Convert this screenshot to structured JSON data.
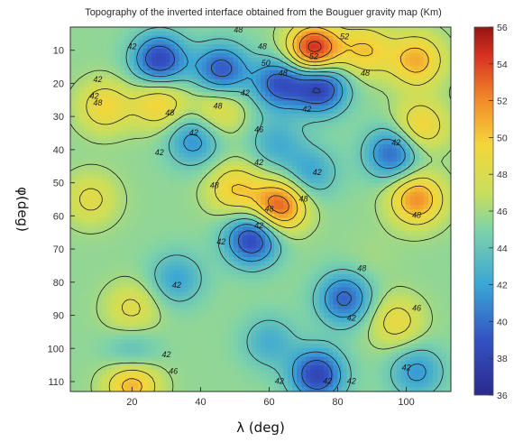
{
  "chart_data": {
    "type": "heatmap",
    "title": "Topography of the inverted interface obtained from the Bouguer gravity map (Km)",
    "xlabel": "λ (deg)",
    "ylabel": "φ(deg)",
    "xlim": [
      2,
      113
    ],
    "ylim": [
      113,
      3
    ],
    "xticks": [
      "20",
      "40",
      "60",
      "80",
      "100"
    ],
    "yticks": [
      "10",
      "20",
      "30",
      "40",
      "50",
      "60",
      "70",
      "80",
      "90",
      "100",
      "110"
    ],
    "colorbar": {
      "min": 36,
      "max": 56,
      "ticks": [
        "56",
        "54",
        "52",
        "50",
        "48",
        "46",
        "44",
        "42",
        "40",
        "38",
        "36"
      ],
      "colormap": "jet"
    },
    "baseline": 45.5,
    "features": [
      {
        "lon": 28,
        "lat": 13,
        "value": 38
      },
      {
        "lon": 46,
        "lat": 16,
        "value": 39
      },
      {
        "lon": 63,
        "lat": 20,
        "value": 39
      },
      {
        "lon": 75,
        "lat": 21,
        "value": 37.5
      },
      {
        "lon": 73,
        "lat": 10,
        "value": 55.5
      },
      {
        "lon": 88,
        "lat": 10,
        "value": 50
      },
      {
        "lon": 103,
        "lat": 13,
        "value": 51
      },
      {
        "lon": 104,
        "lat": 33,
        "value": 50
      },
      {
        "lon": 28,
        "lat": 26,
        "value": 50
      },
      {
        "lon": 12,
        "lat": 27,
        "value": 49.5
      },
      {
        "lon": 45,
        "lat": 28,
        "value": 49
      },
      {
        "lon": 38,
        "lat": 37,
        "value": 41
      },
      {
        "lon": 62,
        "lat": 38,
        "value": 42.5
      },
      {
        "lon": 96,
        "lat": 41,
        "value": 39.5
      },
      {
        "lon": 72,
        "lat": 47,
        "value": 42
      },
      {
        "lon": 63,
        "lat": 57,
        "value": 53.5
      },
      {
        "lon": 50,
        "lat": 52,
        "value": 50
      },
      {
        "lon": 103,
        "lat": 55,
        "value": 52
      },
      {
        "lon": 8,
        "lat": 55,
        "value": 48.5
      },
      {
        "lon": 55,
        "lat": 67,
        "value": 38
      },
      {
        "lon": 33,
        "lat": 79,
        "value": 42
      },
      {
        "lon": 82,
        "lat": 85,
        "value": 39.5
      },
      {
        "lon": 90,
        "lat": 73,
        "value": 46
      },
      {
        "lon": 20,
        "lat": 88,
        "value": 48.5
      },
      {
        "lon": 60,
        "lat": 98,
        "value": 42.5
      },
      {
        "lon": 97,
        "lat": 92,
        "value": 49
      },
      {
        "lon": 20,
        "lat": 103,
        "value": 42
      },
      {
        "lon": 20,
        "lat": 110,
        "value": 52
      },
      {
        "lon": 74,
        "lat": 108,
        "value": 38
      },
      {
        "lon": 103,
        "lat": 107,
        "value": 41.5
      }
    ],
    "contour_labels": [
      {
        "lon": 51,
        "lat": 4,
        "text": "48"
      },
      {
        "lon": 20,
        "lat": 9,
        "text": "42"
      },
      {
        "lon": 82,
        "lat": 6,
        "text": "52"
      },
      {
        "lon": 58,
        "lat": 9,
        "text": "48"
      },
      {
        "lon": 73,
        "lat": 12,
        "text": "52"
      },
      {
        "lon": 59,
        "lat": 14,
        "text": "50"
      },
      {
        "lon": 10,
        "lat": 19,
        "text": "42"
      },
      {
        "lon": 64,
        "lat": 17,
        "text": "48"
      },
      {
        "lon": 88,
        "lat": 17,
        "text": "48"
      },
      {
        "lon": 53,
        "lat": 23,
        "text": "42"
      },
      {
        "lon": 9,
        "lat": 24,
        "text": "42"
      },
      {
        "lon": 10,
        "lat": 26,
        "text": "48"
      },
      {
        "lon": 45,
        "lat": 27,
        "text": "48"
      },
      {
        "lon": 31,
        "lat": 29,
        "text": "48"
      },
      {
        "lon": 71,
        "lat": 28,
        "text": "42"
      },
      {
        "lon": 57,
        "lat": 34,
        "text": "46"
      },
      {
        "lon": 38,
        "lat": 35,
        "text": "42"
      },
      {
        "lon": 97,
        "lat": 38,
        "text": "42"
      },
      {
        "lon": 28,
        "lat": 41,
        "text": "42"
      },
      {
        "lon": 57,
        "lat": 44,
        "text": "42"
      },
      {
        "lon": 74,
        "lat": 47,
        "text": "42"
      },
      {
        "lon": 44,
        "lat": 51,
        "text": "48"
      },
      {
        "lon": 70,
        "lat": 55,
        "text": "48"
      },
      {
        "lon": 60,
        "lat": 58,
        "text": "48"
      },
      {
        "lon": 103,
        "lat": 60,
        "text": "48"
      },
      {
        "lon": 57,
        "lat": 63,
        "text": "42"
      },
      {
        "lon": 46,
        "lat": 68,
        "text": "42"
      },
      {
        "lon": 87,
        "lat": 76,
        "text": "48"
      },
      {
        "lon": 33,
        "lat": 81,
        "text": "42"
      },
      {
        "lon": 103,
        "lat": 88,
        "text": "46"
      },
      {
        "lon": 84,
        "lat": 91,
        "text": "42"
      },
      {
        "lon": 30,
        "lat": 102,
        "text": "42"
      },
      {
        "lon": 32,
        "lat": 107,
        "text": "46"
      },
      {
        "lon": 63,
        "lat": 110,
        "text": "42"
      },
      {
        "lon": 77,
        "lat": 110,
        "text": "42"
      },
      {
        "lon": 84,
        "lat": 110,
        "text": "42"
      },
      {
        "lon": 100,
        "lat": 106,
        "text": "42"
      }
    ]
  }
}
